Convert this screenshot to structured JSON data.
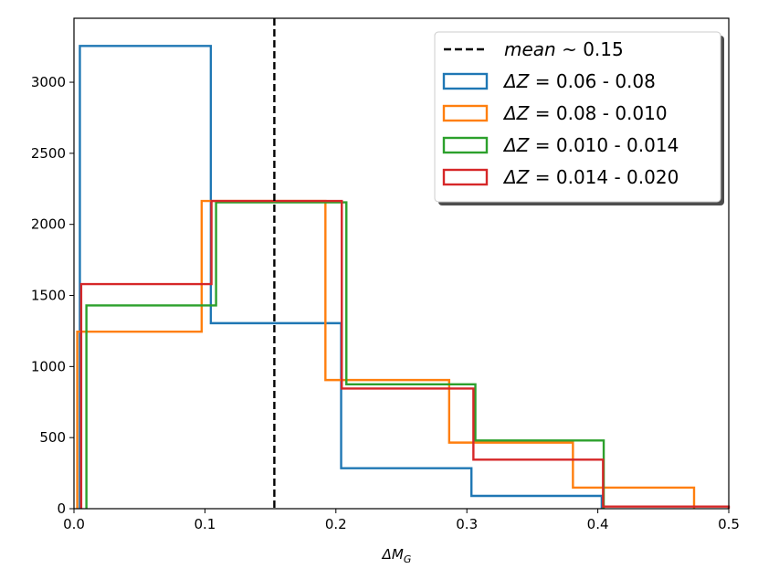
{
  "chart_data": {
    "type": "histogram-step",
    "title": "",
    "xlabel": "ΔM",
    "xlabel_sub": "G",
    "ylabel": "",
    "xlim": [
      0.0,
      0.5
    ],
    "ylim": [
      0,
      3450
    ],
    "xticks": [
      0.0,
      0.1,
      0.2,
      0.3,
      0.4,
      0.5
    ],
    "xtick_labels": [
      "0.0",
      "0.1",
      "0.2",
      "0.3",
      "0.4",
      "0.5"
    ],
    "yticks": [
      0,
      500,
      1000,
      1500,
      2000,
      2500,
      3000
    ],
    "ytick_labels": [
      "0",
      "500",
      "1000",
      "1500",
      "2000",
      "2500",
      "3000"
    ],
    "grid": false,
    "legend_position": "top-right",
    "mean_line": {
      "x": 0.153,
      "label_italic": "mean",
      "label_rest": " ~ 0.15",
      "color": "#000000",
      "style": "dashed"
    },
    "series": [
      {
        "name": "ΔZ = 0.06 - 0.08",
        "label_italic": "ΔZ",
        "label_rest": " = 0.06 - 0.08",
        "color": "#1f77b4",
        "edges": [
          0.0045,
          0.1045,
          0.204,
          0.3035,
          0.403
        ],
        "counts": [
          3255,
          1305,
          285,
          90
        ]
      },
      {
        "name": "ΔZ = 0.08 - 0.010",
        "label_italic": "ΔZ",
        "label_rest": " = 0.08 - 0.010",
        "color": "#ff7f0e",
        "edges": [
          0.0025,
          0.0975,
          0.192,
          0.2865,
          0.381,
          0.4735
        ],
        "counts": [
          1245,
          2165,
          905,
          465,
          148
        ]
      },
      {
        "name": "ΔZ = 0.010 - 0.014",
        "label_italic": "ΔZ",
        "label_rest": " = 0.010 - 0.014",
        "color": "#2ca02c",
        "edges": [
          0.0095,
          0.1085,
          0.208,
          0.3065,
          0.4045
        ],
        "counts": [
          1430,
          2155,
          875,
          480
        ]
      },
      {
        "name": "ΔZ = 0.014 - 0.020",
        "label_italic": "ΔZ",
        "label_rest": " = 0.014 - 0.020",
        "color": "#d62728",
        "edges": [
          0.0055,
          0.105,
          0.2045,
          0.305,
          0.404,
          0.5
        ],
        "counts": [
          1580,
          2165,
          845,
          345,
          15
        ]
      }
    ]
  }
}
